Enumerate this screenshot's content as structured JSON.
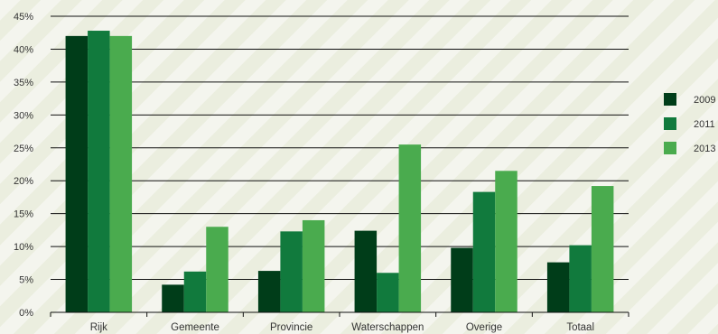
{
  "chart_data": {
    "type": "bar",
    "categories": [
      "Rijk",
      "Gemeente",
      "Provincie",
      "Waterschappen",
      "Overige",
      "Totaal"
    ],
    "series": [
      {
        "name": "2009",
        "color": "#003d19",
        "values": [
          42.0,
          4.2,
          6.3,
          12.4,
          9.8,
          7.6
        ]
      },
      {
        "name": "2011",
        "color": "#117a3d",
        "values": [
          42.8,
          6.2,
          12.3,
          6.0,
          18.3,
          10.2
        ]
      },
      {
        "name": "2013",
        "color": "#4aab4e",
        "values": [
          42.0,
          13.0,
          14.0,
          25.5,
          21.5,
          19.2
        ]
      }
    ],
    "ylim": [
      0,
      45
    ],
    "y_ticks": [
      "0%",
      "5%",
      "10%",
      "15%",
      "20%",
      "25%",
      "30%",
      "35%",
      "40%",
      "45%"
    ],
    "grid": true,
    "legend_position": "right"
  }
}
